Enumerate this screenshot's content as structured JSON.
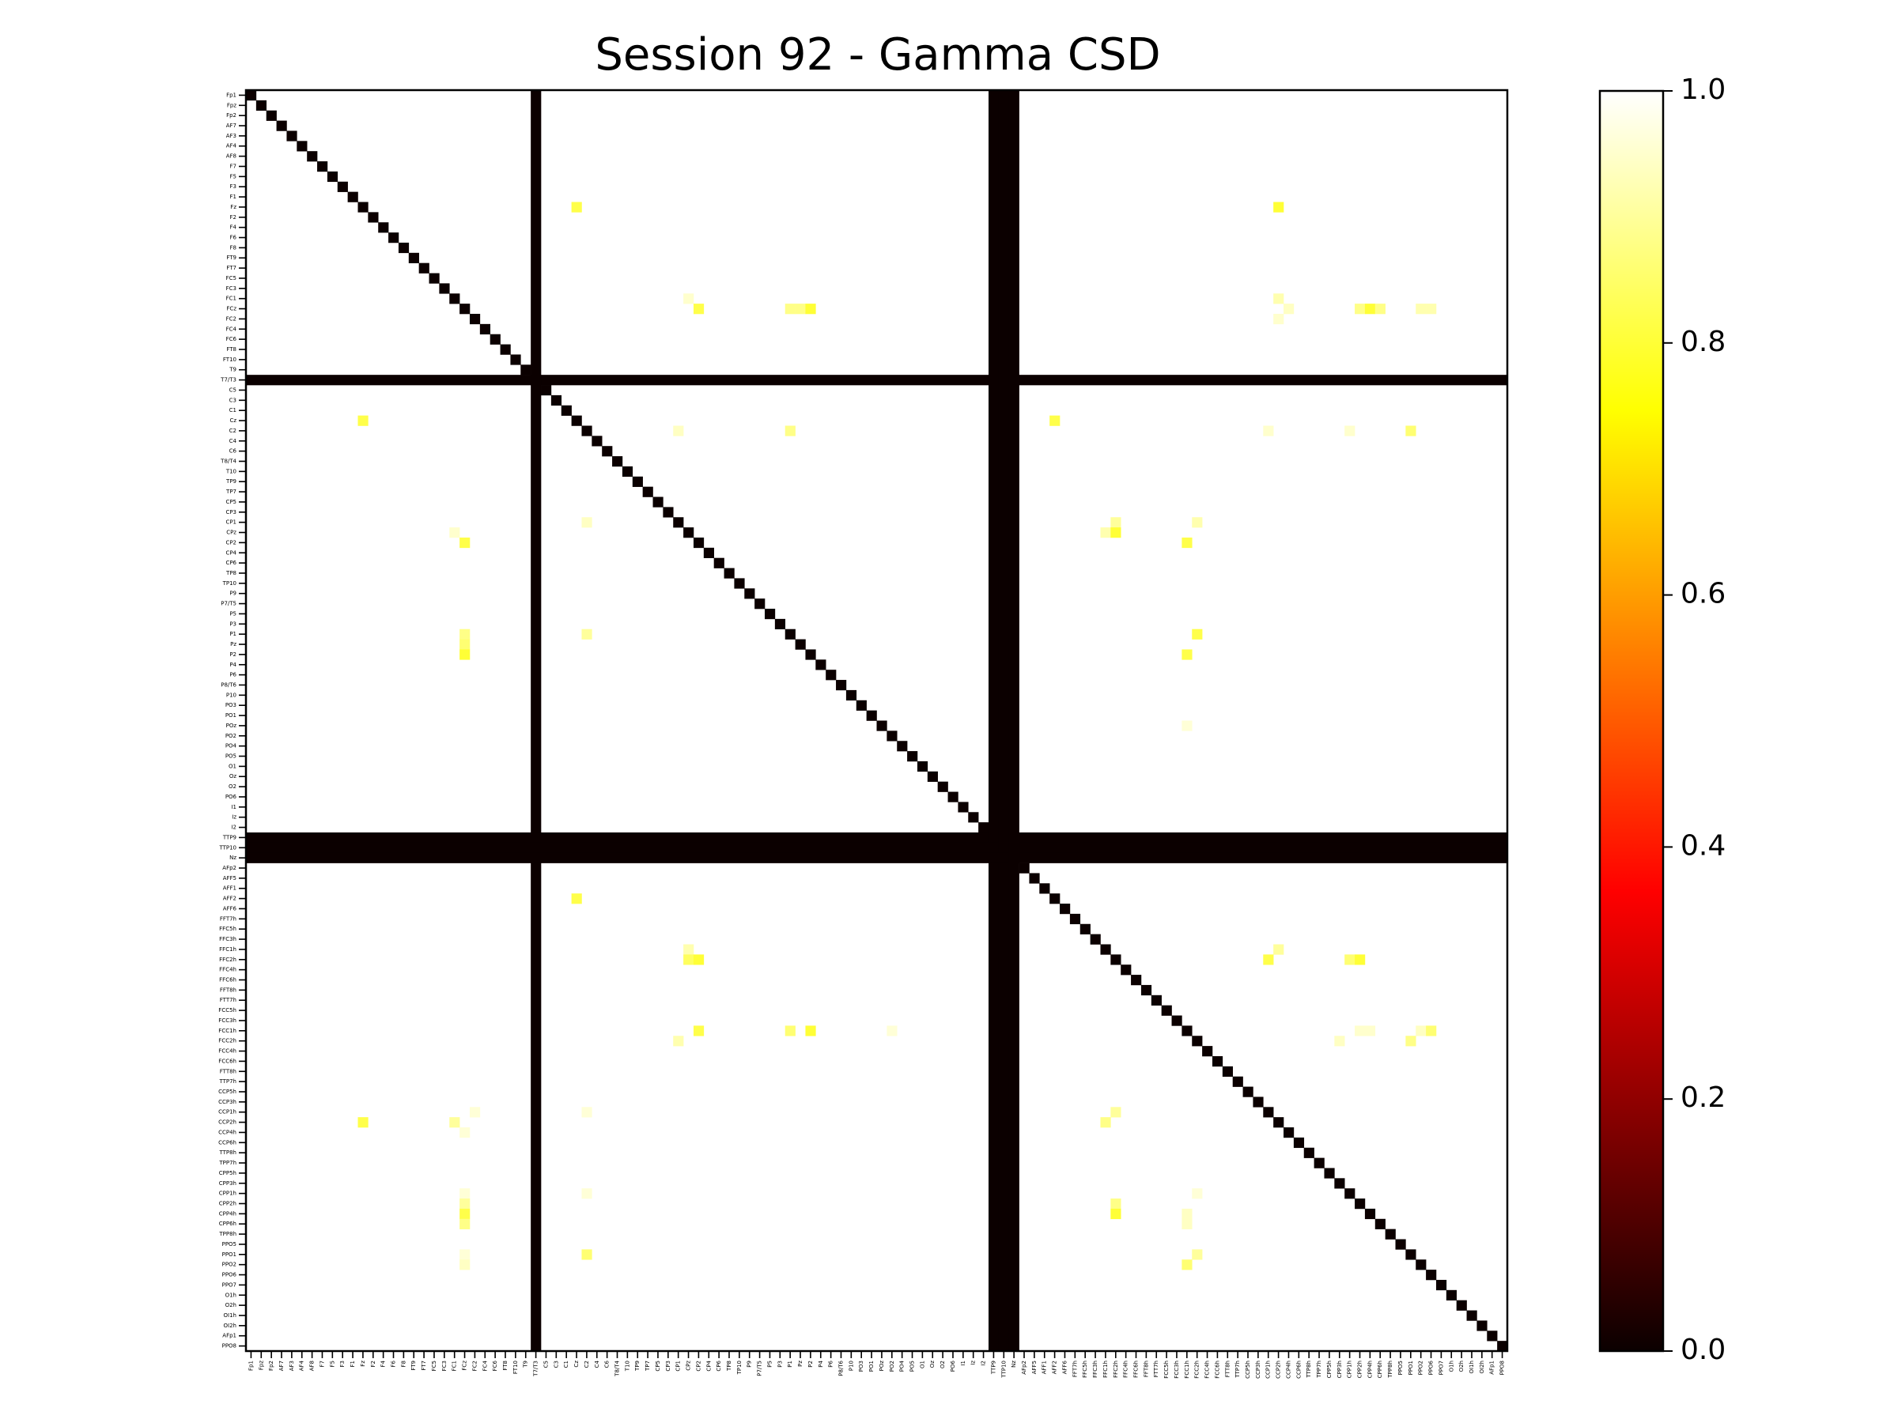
{
  "chart_data": {
    "type": "heatmap",
    "title": "Session 92 - Gamma CSD",
    "xlabel": "",
    "ylabel": "",
    "colormap": "hot",
    "clim": [
      0,
      1
    ],
    "colorbar_ticks": [
      "0.0",
      "0.2",
      "0.4",
      "0.6",
      "0.8",
      "1.0"
    ],
    "colorbar_tick_values": [
      0,
      0.2,
      0.4,
      0.6,
      0.8,
      1.0
    ],
    "default_value": 1.0,
    "labels": [
      "Fp1",
      "Fpz",
      "Fp2",
      "AF7",
      "AF3",
      "AF4",
      "AF8",
      "F7",
      "F5",
      "F3",
      "F1",
      "Fz",
      "F2",
      "F4",
      "F6",
      "F8",
      "FT9",
      "FT7",
      "FC5",
      "FC3",
      "FC1",
      "FCz",
      "FC2",
      "FC4",
      "FC6",
      "FT8",
      "FT10",
      "T9",
      "T7/T3",
      "C5",
      "C3",
      "C1",
      "Cz",
      "C2",
      "C4",
      "C6",
      "T8/T4",
      "T10",
      "TP9",
      "TP7",
      "CP5",
      "CP3",
      "CP1",
      "CPz",
      "CP2",
      "CP4",
      "CP6",
      "TP8",
      "TP10",
      "P9",
      "P7/T5",
      "P5",
      "P3",
      "P1",
      "Pz",
      "P2",
      "P4",
      "P6",
      "P8/T6",
      "P10",
      "PO3",
      "PO1",
      "POz",
      "PO2",
      "PO4",
      "PO5",
      "O1",
      "Oz",
      "O2",
      "PO6",
      "I1",
      "Iz",
      "I2",
      "TTP9",
      "TTP10",
      "Nz",
      "AFp2",
      "AFF5",
      "AFF1",
      "AFF2",
      "AFF6",
      "FFT7h",
      "FFC5h",
      "FFC3h",
      "FFC1h",
      "FFC2h",
      "FFC4h",
      "FFC6h",
      "FFT8h",
      "FTT7h",
      "FCC5h",
      "FCC3h",
      "FCC1h",
      "FCC2h",
      "FCC4h",
      "FCC6h",
      "FTT8h",
      "TTP7h",
      "CCP5h",
      "CCP3h",
      "CCP1h",
      "CCP2h",
      "CCP4h",
      "CCP6h",
      "TTP8h",
      "TPP7h",
      "CPP5h",
      "CPP3h",
      "CPP1h",
      "CPP2h",
      "CPP4h",
      "CPP6h",
      "TPP8h",
      "PPO5",
      "PPO1",
      "PPO2",
      "PPO6",
      "PPO7",
      "O1h",
      "O2h",
      "OI1h",
      "OI2h",
      "AFp1",
      "PPO8"
    ],
    "zero_rows_cols": [
      28,
      73,
      74,
      75
    ],
    "diagonal_value": 0,
    "cells": [
      [
        11,
        32,
        0.82
      ],
      [
        11,
        101,
        0.8
      ],
      [
        20,
        43,
        0.95
      ],
      [
        21,
        44,
        0.82
      ],
      [
        22,
        101,
        0.95
      ],
      [
        20,
        101,
        0.92
      ],
      [
        21,
        102,
        0.94
      ],
      [
        21,
        53,
        0.88
      ],
      [
        21,
        54,
        0.88
      ],
      [
        21,
        55,
        0.8
      ],
      [
        21,
        109,
        0.88
      ],
      [
        21,
        110,
        0.8
      ],
      [
        21,
        111,
        0.88
      ],
      [
        21,
        115,
        0.92
      ],
      [
        21,
        116,
        0.92
      ],
      [
        32,
        11,
        0.82
      ],
      [
        32,
        79,
        0.82
      ],
      [
        33,
        42,
        0.94
      ],
      [
        33,
        53,
        0.88
      ],
      [
        33,
        100,
        0.95
      ],
      [
        33,
        108,
        0.95
      ],
      [
        33,
        114,
        0.86
      ],
      [
        42,
        33,
        0.94
      ],
      [
        43,
        20,
        0.95
      ],
      [
        44,
        21,
        0.82
      ],
      [
        42,
        85,
        0.9
      ],
      [
        43,
        84,
        0.92
      ],
      [
        43,
        85,
        0.8
      ],
      [
        44,
        92,
        0.82
      ],
      [
        42,
        93,
        0.92
      ],
      [
        53,
        21,
        0.88
      ],
      [
        54,
        21,
        0.86
      ],
      [
        55,
        21,
        0.8
      ],
      [
        53,
        33,
        0.9
      ],
      [
        53,
        93,
        0.82
      ],
      [
        55,
        92,
        0.82
      ],
      [
        62,
        92,
        0.96
      ],
      [
        79,
        32,
        0.82
      ],
      [
        84,
        43,
        0.92
      ],
      [
        85,
        43,
        0.84
      ],
      [
        85,
        44,
        0.8
      ],
      [
        84,
        101,
        0.9
      ],
      [
        85,
        100,
        0.82
      ],
      [
        85,
        108,
        0.86
      ],
      [
        85,
        109,
        0.8
      ],
      [
        92,
        44,
        0.82
      ],
      [
        93,
        42,
        0.92
      ],
      [
        92,
        53,
        0.86
      ],
      [
        92,
        55,
        0.8
      ],
      [
        92,
        63,
        0.96
      ],
      [
        93,
        107,
        0.94
      ],
      [
        92,
        109,
        0.95
      ],
      [
        92,
        110,
        0.95
      ],
      [
        92,
        115,
        0.94
      ],
      [
        92,
        116,
        0.86
      ],
      [
        93,
        114,
        0.88
      ],
      [
        101,
        11,
        0.82
      ],
      [
        101,
        20,
        0.9
      ],
      [
        100,
        22,
        0.96
      ],
      [
        102,
        21,
        0.96
      ],
      [
        100,
        33,
        0.96
      ],
      [
        101,
        84,
        0.88
      ],
      [
        100,
        85,
        0.9
      ],
      [
        108,
        21,
        0.96
      ],
      [
        109,
        21,
        0.9
      ],
      [
        110,
        21,
        0.82
      ],
      [
        111,
        21,
        0.88
      ],
      [
        108,
        33,
        0.96
      ],
      [
        109,
        85,
        0.88
      ],
      [
        110,
        85,
        0.8
      ],
      [
        110,
        92,
        0.94
      ],
      [
        111,
        92,
        0.94
      ],
      [
        108,
        93,
        0.96
      ],
      [
        114,
        21,
        0.96
      ],
      [
        115,
        21,
        0.94
      ],
      [
        114,
        33,
        0.86
      ],
      [
        115,
        92,
        0.86
      ],
      [
        114,
        93,
        0.9
      ]
    ]
  }
}
